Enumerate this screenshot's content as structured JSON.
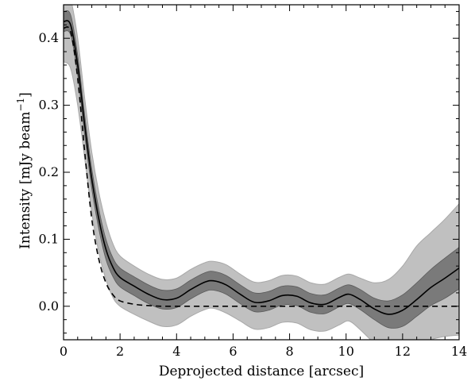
{
  "chart_data": {
    "type": "line",
    "title": "",
    "xlabel": "Deprojected distance [arcsec]",
    "ylabel": "Intensity [mJy beam",
    "ylabel_superscript": "−1",
    "ylabel_suffix": "]",
    "xlim": [
      0,
      14
    ],
    "ylim": [
      -0.05,
      0.45
    ],
    "grid": false,
    "legend": "none",
    "x_ticks": [
      0,
      2,
      4,
      6,
      8,
      10,
      12,
      14
    ],
    "x_tick_labels": [
      "0",
      "2",
      "4",
      "6",
      "8",
      "10",
      "12",
      "14"
    ],
    "y_ticks": [
      0.0,
      0.1,
      0.2,
      0.3,
      0.4
    ],
    "y_tick_labels": [
      "0.0",
      "0.1",
      "0.2",
      "0.3",
      "0.4"
    ],
    "x": [
      0,
      0.25,
      0.5,
      0.75,
      1.0,
      1.25,
      1.5,
      1.75,
      2.0,
      2.5,
      3.0,
      3.5,
      4.0,
      4.5,
      5.0,
      5.3,
      5.75,
      6.25,
      6.75,
      7.25,
      7.75,
      8.25,
      8.75,
      9.25,
      9.75,
      10.1,
      10.5,
      11.0,
      11.5,
      12.0,
      12.5,
      13.0,
      13.5,
      14.0
    ],
    "series": [
      {
        "role": "profile",
        "line_style": "solid",
        "color": "#000000",
        "values": [
          0.425,
          0.42,
          0.36,
          0.27,
          0.19,
          0.13,
          0.085,
          0.058,
          0.043,
          0.03,
          0.018,
          0.01,
          0.012,
          0.025,
          0.036,
          0.038,
          0.032,
          0.018,
          0.006,
          0.008,
          0.016,
          0.015,
          0.005,
          0.003,
          0.013,
          0.018,
          0.01,
          -0.004,
          -0.012,
          -0.006,
          0.01,
          0.028,
          0.042,
          0.057
        ]
      },
      {
        "role": "model",
        "line_style": "dashed",
        "color": "#000000",
        "values": [
          0.415,
          0.41,
          0.34,
          0.23,
          0.13,
          0.07,
          0.035,
          0.017,
          0.008,
          0.003,
          0.001,
          0.0,
          0.0,
          0.0,
          0.0,
          0.0,
          0.0,
          0.0,
          0.0,
          0.0,
          0.0,
          0.0,
          0.0,
          0.0,
          0.0,
          0.0,
          0.0,
          0.0,
          0.0,
          0.0,
          0.0,
          0.0,
          0.0,
          0.0
        ]
      }
    ],
    "bands": [
      {
        "role": "outer-uncertainty",
        "color": "#c0c0c0",
        "upper": [
          0.49,
          0.46,
          0.4,
          0.31,
          0.23,
          0.17,
          0.125,
          0.093,
          0.075,
          0.06,
          0.048,
          0.04,
          0.042,
          0.055,
          0.065,
          0.067,
          0.062,
          0.048,
          0.036,
          0.038,
          0.046,
          0.045,
          0.035,
          0.033,
          0.043,
          0.048,
          0.042,
          0.035,
          0.04,
          0.06,
          0.09,
          0.11,
          0.13,
          0.153
        ]
      },
      {
        "role": "outer-uncertainty-lower",
        "color": "#c0c0c0",
        "lower": [
          0.365,
          0.355,
          0.3,
          0.22,
          0.14,
          0.08,
          0.04,
          0.013,
          0.0,
          -0.012,
          -0.022,
          -0.03,
          -0.028,
          -0.015,
          -0.005,
          -0.003,
          -0.01,
          -0.022,
          -0.034,
          -0.032,
          -0.024,
          -0.025,
          -0.035,
          -0.037,
          -0.028,
          -0.022,
          -0.035,
          -0.055,
          -0.07,
          -0.07,
          -0.06,
          -0.05,
          -0.045,
          -0.043
        ]
      },
      {
        "role": "inner-uncertainty",
        "color": "#7a7a7a",
        "upper": [
          0.44,
          0.435,
          0.375,
          0.285,
          0.205,
          0.145,
          0.1,
          0.072,
          0.057,
          0.044,
          0.032,
          0.024,
          0.026,
          0.039,
          0.05,
          0.052,
          0.046,
          0.032,
          0.02,
          0.022,
          0.03,
          0.029,
          0.019,
          0.017,
          0.027,
          0.032,
          0.025,
          0.012,
          0.008,
          0.017,
          0.035,
          0.055,
          0.072,
          0.088
        ]
      },
      {
        "role": "inner-uncertainty-lower",
        "color": "#7a7a7a",
        "lower": [
          0.41,
          0.405,
          0.345,
          0.255,
          0.175,
          0.115,
          0.07,
          0.044,
          0.029,
          0.016,
          0.004,
          -0.004,
          -0.002,
          0.011,
          0.022,
          0.024,
          0.018,
          0.004,
          -0.008,
          -0.006,
          0.002,
          0.001,
          -0.009,
          -0.011,
          -0.001,
          0.004,
          -0.005,
          -0.02,
          -0.032,
          -0.03,
          -0.015,
          0.001,
          0.012,
          0.026
        ]
      }
    ]
  }
}
